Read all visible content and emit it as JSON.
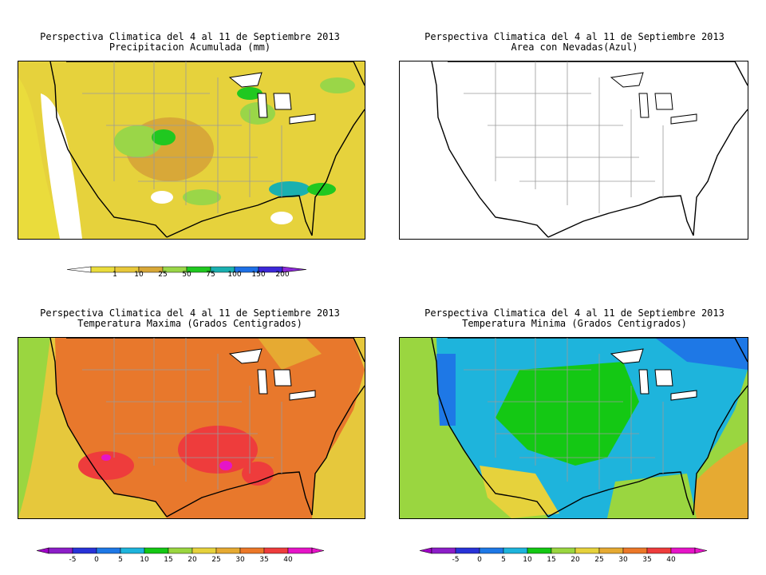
{
  "panels": [
    {
      "id": "precip",
      "title_line1": "Perspectiva Climatica del 4 al 11 de Septiembre 2013",
      "title_line2": "Precipitacion Acumulada (mm)",
      "colorbar": {
        "labels": [
          "1",
          "10",
          "25",
          "50",
          "75",
          "100",
          "150",
          "200"
        ],
        "colors": [
          "#eadc3c",
          "#e8c83a",
          "#d8a838",
          "#9ad648",
          "#20c820",
          "#1ab0b0",
          "#1e70e6",
          "#3c28d8"
        ],
        "left_arrow_color": "#ffffff",
        "right_arrow_color": "#8c28d8"
      }
    },
    {
      "id": "snow",
      "title_line1": "Perspectiva Climatica del 4 al 11 de Septiembre 2013",
      "title_line2": "Area con Nevadas(Azul)"
    },
    {
      "id": "tmax",
      "title_line1": "Perspectiva Climatica del 4 al 11 de Septiembre 2013",
      "title_line2": "Temperatura Maxima (Grados Centigrados)",
      "colorbar": {
        "labels": [
          "-5",
          "0",
          "5",
          "10",
          "15",
          "20",
          "25",
          "30",
          "35",
          "40"
        ],
        "colors": [
          "#8c1ec8",
          "#2832d8",
          "#1e78e6",
          "#1eb4dc",
          "#14c814",
          "#9ad640",
          "#e6d23c",
          "#e6aa32",
          "#ec7828",
          "#ee3c3c",
          "#e614c8"
        ],
        "left_arrow_color": "#a000c8",
        "right_arrow_color": "#e614c8"
      }
    },
    {
      "id": "tmin",
      "title_line1": "Perspectiva Climatica del 4 al 11 de Septiembre 2013",
      "title_line2": "Temperatura Minima (Grados Centigrados)",
      "colorbar": {
        "labels": [
          "-5",
          "0",
          "5",
          "10",
          "15",
          "20",
          "25",
          "30",
          "35",
          "40"
        ],
        "colors": [
          "#8c1ec8",
          "#2832d8",
          "#1e78e6",
          "#1eb4dc",
          "#14c814",
          "#9ad640",
          "#e6d23c",
          "#e6aa32",
          "#ec7828",
          "#ee3c3c",
          "#e614c8"
        ],
        "left_arrow_color": "#a000c8",
        "right_arrow_color": "#e614c8"
      }
    }
  ],
  "field_colors": {
    "ocean_precip": "#e6d23c",
    "land_precip": "#dcb43a",
    "tmax_ocean": "#e6c83c",
    "tmax_land": "#e8782c",
    "tmin_ocean": "#9ad640",
    "tmin_land": "#1eb4dc"
  }
}
